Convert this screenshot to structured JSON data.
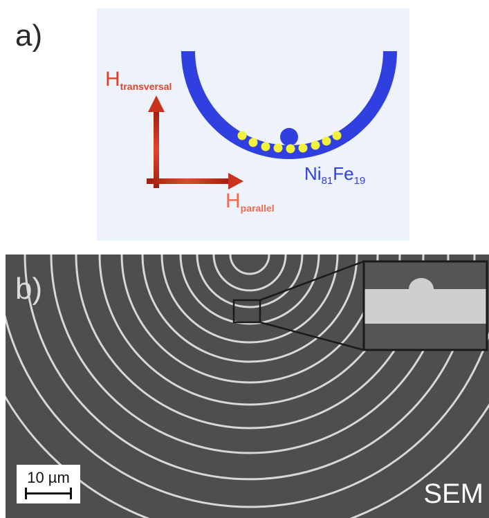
{
  "panels": {
    "a": {
      "label": "a)",
      "field_transversal": {
        "symbol": "H",
        "subscript": "transversal"
      },
      "field_parallel": {
        "symbol": "H",
        "subscript": "parallel"
      },
      "material": {
        "part1": "Ni",
        "sub1": "81",
        "part2": "Fe",
        "sub2": "19"
      },
      "colors": {
        "ring": "#2f3fe0",
        "particles": "#f2f23a",
        "arrow": "#c8321e",
        "text_red": "#d8442e",
        "text_blue": "#2f3fe0"
      }
    },
    "b": {
      "label": "b)",
      "scale_bar": "10 µm",
      "technique": "SEM",
      "colors": {
        "background": "#4e4e4e",
        "rings": "#d8d8d8",
        "inset_frame": "#1a1a1a"
      }
    }
  }
}
